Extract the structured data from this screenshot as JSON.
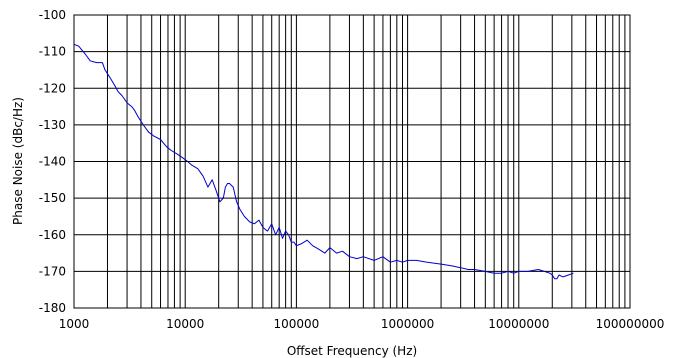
{
  "chart_data": {
    "type": "line",
    "title": "",
    "xlabel": "Offset Frequency (Hz)",
    "ylabel": "Phase Noise (dBc/Hz)",
    "x_scale": "log",
    "xlim": [
      1000,
      100000000
    ],
    "ylim": [
      -180,
      -100
    ],
    "grid": true,
    "x_ticks": [
      "1000",
      "10000",
      "100000",
      "1000000",
      "10000000",
      "100000000"
    ],
    "y_ticks": [
      "-100",
      "-110",
      "-120",
      "-130",
      "-140",
      "-150",
      "-160",
      "-170",
      "-180"
    ],
    "line_color": "#0000cc",
    "series": [
      {
        "x": [
          1000,
          1100,
          1250,
          1400,
          1600,
          1800,
          1900,
          2100,
          2300,
          2500,
          2700,
          3000,
          3300,
          3500,
          3800,
          4200,
          4700,
          5200,
          6000,
          6800,
          7500,
          8500,
          9500,
          10500,
          11500,
          13000,
          14500,
          16000,
          17500,
          19000,
          20500,
          22000,
          23000,
          24000,
          25000,
          27000,
          29000,
          31000,
          34000,
          38000,
          42000,
          46000,
          50000,
          55000,
          60000,
          65000,
          70000,
          75000,
          80000,
          85000,
          90000,
          95000,
          100000,
          110000,
          125000,
          140000,
          160000,
          180000,
          200000,
          230000,
          260000,
          300000,
          350000,
          400000,
          500000,
          600000,
          700000,
          800000,
          900000,
          1000000,
          1200000,
          1500000,
          2000000,
          2500000,
          3000000,
          3500000,
          4000000,
          5000000,
          6000000,
          7000000,
          8000000,
          9000000,
          10000000,
          12000000,
          15000000,
          17000000,
          19000000,
          20000000,
          21000000,
          22000000,
          23000000,
          25000000,
          28000000,
          31000000
        ],
        "y": [
          -108,
          -108.5,
          -110.5,
          -112.5,
          -113,
          -113,
          -115,
          -117,
          -119,
          -121,
          -122,
          -124,
          -125,
          -126,
          -128,
          -130,
          -132,
          -133,
          -134,
          -136,
          -137,
          -138,
          -139,
          -140,
          -141,
          -142,
          -144,
          -147,
          -145,
          -148,
          -151,
          -150,
          -147,
          -146,
          -146,
          -147,
          -151,
          -153,
          -155,
          -156.5,
          -157,
          -156,
          -158,
          -159,
          -157,
          -160,
          -158,
          -161,
          -159,
          -160,
          -162,
          -162,
          -163,
          -162.5,
          -161.5,
          -163,
          -164,
          -165,
          -163.5,
          -165,
          -164.5,
          -166,
          -166.5,
          -166,
          -167,
          -166,
          -167.5,
          -167,
          -167.5,
          -167,
          -167,
          -167.5,
          -168,
          -168.5,
          -169,
          -169.5,
          -169.5,
          -170,
          -170.5,
          -170.5,
          -170,
          -170.5,
          -170,
          -170,
          -169.5,
          -170,
          -170.5,
          -171,
          -172,
          -172,
          -171,
          -171.5,
          -171,
          -170.5
        ]
      }
    ]
  }
}
